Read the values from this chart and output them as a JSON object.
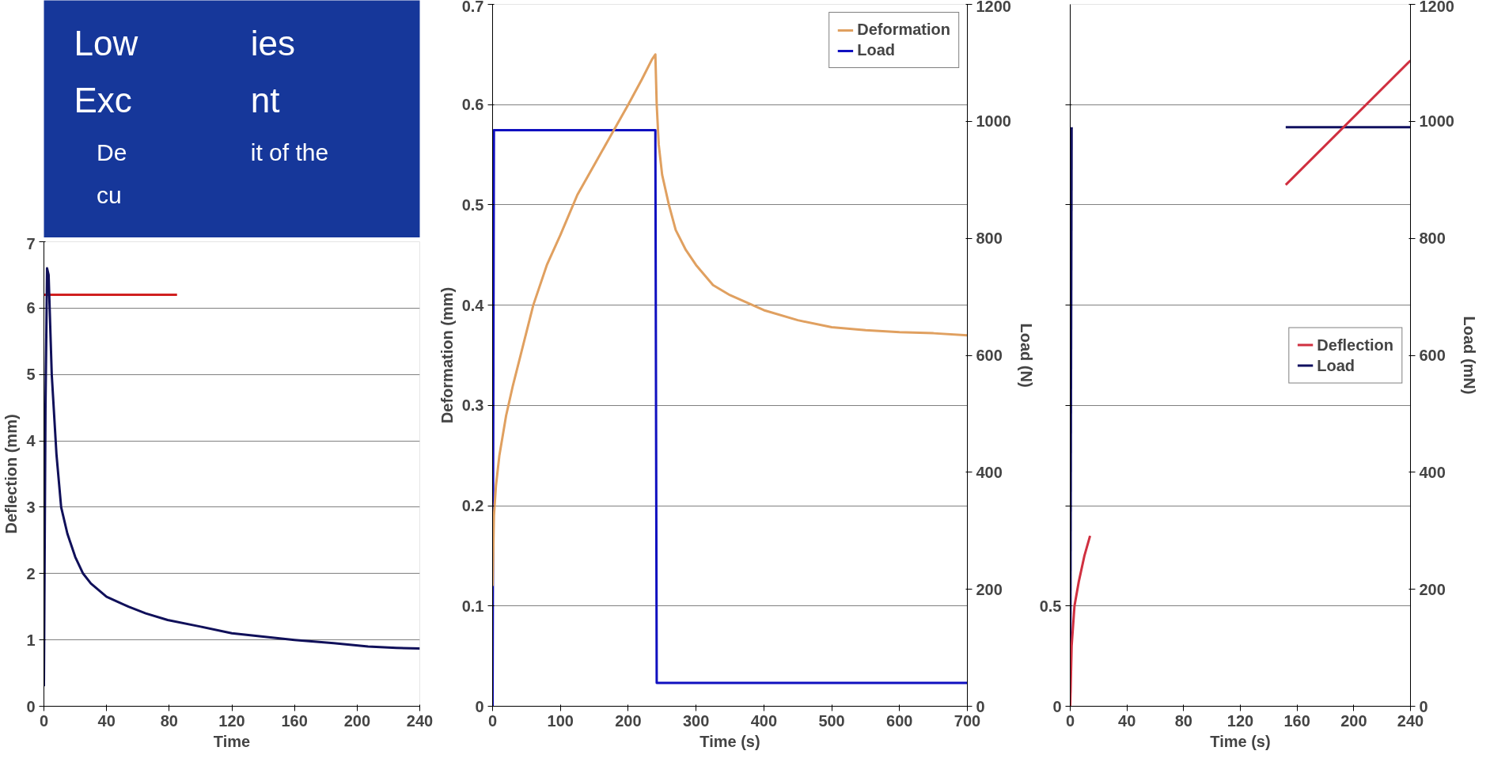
{
  "chart_data": [
    {
      "type": "other",
      "annotations": [
        "Low",
        "ies",
        "Exc",
        "nt",
        "De",
        "it of the",
        "cu"
      ]
    },
    {
      "type": "line",
      "xlabel": "Time (s)",
      "ylabel": "Deformation (mm)",
      "y2label": "Load (N)",
      "xlim": [
        0,
        700
      ],
      "ylim": [
        0,
        0.7
      ],
      "y2lim": [
        0,
        1200
      ],
      "xticks": [
        0,
        100,
        200,
        300,
        400,
        500,
        600,
        700
      ],
      "yticks": [
        0,
        0.1,
        0.2,
        0.3,
        0.4,
        0.5,
        0.6,
        0.7
      ],
      "y2ticks": [
        0,
        200,
        400,
        600,
        800,
        1000,
        1200
      ],
      "grid": "y",
      "legend": "top right",
      "series": [
        {
          "name": "Deformation",
          "color": "#e0a060",
          "x": [
            0,
            2,
            5,
            10,
            20,
            30,
            45,
            60,
            80,
            100,
            125,
            150,
            175,
            200,
            220,
            235,
            240,
            242,
            245,
            250,
            260,
            270,
            285,
            300,
            325,
            350,
            400,
            450,
            500,
            550,
            600,
            650,
            700
          ],
          "values": [
            0.12,
            0.19,
            0.22,
            0.25,
            0.29,
            0.32,
            0.36,
            0.4,
            0.44,
            0.47,
            0.51,
            0.54,
            0.57,
            0.6,
            0.625,
            0.645,
            0.65,
            0.6,
            0.56,
            0.53,
            0.5,
            0.475,
            0.455,
            0.44,
            0.42,
            0.41,
            0.395,
            0.385,
            0.378,
            0.375,
            0.373,
            0.372,
            0.37
          ]
        },
        {
          "name": "Load",
          "color": "#1010c0",
          "axis": "y2",
          "x": [
            0,
            2,
            100,
            240,
            242,
            250,
            400,
            700
          ],
          "values": [
            0,
            985,
            985,
            985,
            40,
            40,
            40,
            40
          ]
        }
      ]
    },
    {
      "type": "line",
      "xlabel": "Time",
      "ylabel": "Deflection (mm)",
      "xlim": [
        0,
        240
      ],
      "ylim": [
        0,
        7
      ],
      "xticks": [
        0,
        40,
        80,
        120,
        160,
        200,
        240
      ],
      "yticks": [
        0,
        1,
        2,
        3,
        4,
        5,
        6,
        7
      ],
      "grid": "y",
      "legend": false,
      "series": [
        {
          "color": "#d02020",
          "x": [
            0,
            85
          ],
          "values": [
            6.2,
            6.2
          ]
        },
        {
          "color": "#10105a",
          "x": [
            0,
            1,
            2,
            3,
            5,
            8,
            11,
            15,
            20,
            25,
            30,
            40,
            54,
            65,
            79,
            100,
            120,
            140,
            160,
            185,
            207,
            225,
            240
          ],
          "values": [
            0.3,
            4.5,
            6.6,
            6.5,
            5.0,
            3.8,
            3.0,
            2.6,
            2.25,
            2.0,
            1.85,
            1.65,
            1.5,
            1.4,
            1.3,
            1.2,
            1.1,
            1.05,
            1.0,
            0.95,
            0.9,
            0.88,
            0.87
          ]
        }
      ]
    },
    {
      "type": "line",
      "xlabel": "Time (s)",
      "y2label": "Load (mN)",
      "xlim": [
        0,
        240
      ],
      "ylim": [
        0,
        3.5
      ],
      "y2lim": [
        0,
        1200
      ],
      "xticks": [
        0,
        40,
        80,
        120,
        160,
        200,
        240
      ],
      "yticks": [
        0,
        0.5,
        {
          "value": 1,
          "label": null
        },
        {
          "value": 1.5,
          "label": null
        },
        {
          "value": 2,
          "label": null
        },
        {
          "value": 2.5,
          "label": null
        },
        {
          "value": 3,
          "label": null
        }
      ],
      "y2ticks": [
        0,
        200,
        400,
        600,
        800,
        1000,
        1200
      ],
      "grid": "y",
      "legend": "right",
      "series": [
        {
          "name": "Deflection",
          "color": "#d03040",
          "x": [
            0,
            1,
            3,
            6,
            10,
            14
          ],
          "values": [
            0,
            0.3,
            0.5,
            0.62,
            0.75,
            0.85
          ]
        },
        {
          "color": "#d03040",
          "x": [
            152,
            240
          ],
          "values": [
            2.6,
            3.22
          ]
        },
        {
          "name": "Load",
          "color": "#101060",
          "axis": "y2",
          "x": [
            0,
            1
          ],
          "values": [
            0,
            990
          ]
        },
        {
          "color": "#101060",
          "axis": "y2",
          "x": [
            152,
            240
          ],
          "values": [
            990,
            990
          ]
        }
      ]
    }
  ]
}
